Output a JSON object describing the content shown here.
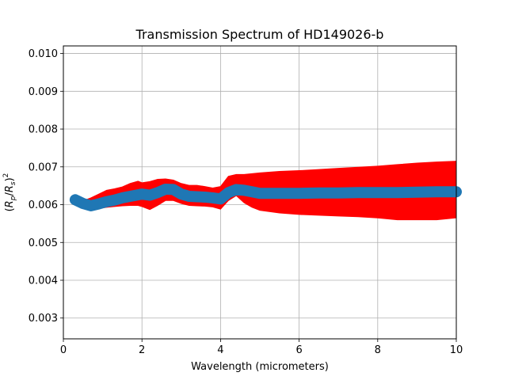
{
  "chart_data": {
    "type": "area",
    "title": "Transmission Spectrum of HD149026-b",
    "xlabel": "Wavelength (micrometers)",
    "ylabel": "(R_p/R_s)^2",
    "xlim": [
      0,
      10
    ],
    "ylim": [
      0.00245,
      0.0102
    ],
    "x_ticks": [
      0,
      2,
      4,
      6,
      8,
      10
    ],
    "x_tick_labels": [
      "0",
      "2",
      "4",
      "6",
      "8",
      "10"
    ],
    "y_ticks": [
      0.003,
      0.004,
      0.005,
      0.006,
      0.007,
      0.008,
      0.009,
      0.01
    ],
    "y_tick_labels": [
      "0.003",
      "0.004",
      "0.005",
      "0.006",
      "0.007",
      "0.008",
      "0.009",
      "0.010"
    ],
    "grid": true,
    "colors": {
      "model": "#1f77b4",
      "error": "#ff0000"
    },
    "x": [
      0.3,
      0.5,
      0.7,
      0.9,
      1.1,
      1.3,
      1.5,
      1.7,
      1.9,
      2.0,
      2.2,
      2.4,
      2.6,
      2.8,
      3.0,
      3.2,
      3.4,
      3.6,
      3.8,
      4.0,
      4.2,
      4.4,
      4.6,
      4.8,
      5.0,
      5.5,
      6.0,
      6.5,
      7.0,
      7.5,
      8.0,
      8.5,
      9.0,
      9.5,
      10.0
    ],
    "series": [
      {
        "values": [
          0.00613,
          0.00603,
          0.00597,
          0.00602,
          0.00608,
          0.00612,
          0.00618,
          0.00622,
          0.00626,
          0.00628,
          0.00625,
          0.00632,
          0.00641,
          0.0064,
          0.00628,
          0.00622,
          0.00621,
          0.0062,
          0.00618,
          0.00615,
          0.00632,
          0.0064,
          0.00638,
          0.00634,
          0.0063,
          0.0063,
          0.0063,
          0.00631,
          0.00631,
          0.00632,
          0.00632,
          0.00632,
          0.00633,
          0.00634,
          0.00634
        ]
      }
    ],
    "error_band": {
      "upper": [
        0.00616,
        0.0061,
        0.00618,
        0.00628,
        0.00638,
        0.00642,
        0.00647,
        0.00656,
        0.00662,
        0.00658,
        0.00661,
        0.00667,
        0.00668,
        0.00665,
        0.00656,
        0.00651,
        0.00651,
        0.00648,
        0.00644,
        0.00648,
        0.00675,
        0.0068,
        0.0068,
        0.00682,
        0.00684,
        0.00688,
        0.0069,
        0.00693,
        0.00696,
        0.00699,
        0.00702,
        0.00706,
        0.0071,
        0.00713,
        0.00715
      ],
      "lower": [
        0.0061,
        0.00597,
        0.00589,
        0.0059,
        0.00593,
        0.00595,
        0.00597,
        0.00598,
        0.00598,
        0.00595,
        0.00587,
        0.00598,
        0.00611,
        0.00611,
        0.00603,
        0.00598,
        0.00597,
        0.00596,
        0.00594,
        0.00588,
        0.00611,
        0.00624,
        0.00605,
        0.00593,
        0.00585,
        0.00578,
        0.00574,
        0.00572,
        0.0057,
        0.00568,
        0.00565,
        0.0056,
        0.0056,
        0.0056,
        0.00565
      ]
    }
  }
}
